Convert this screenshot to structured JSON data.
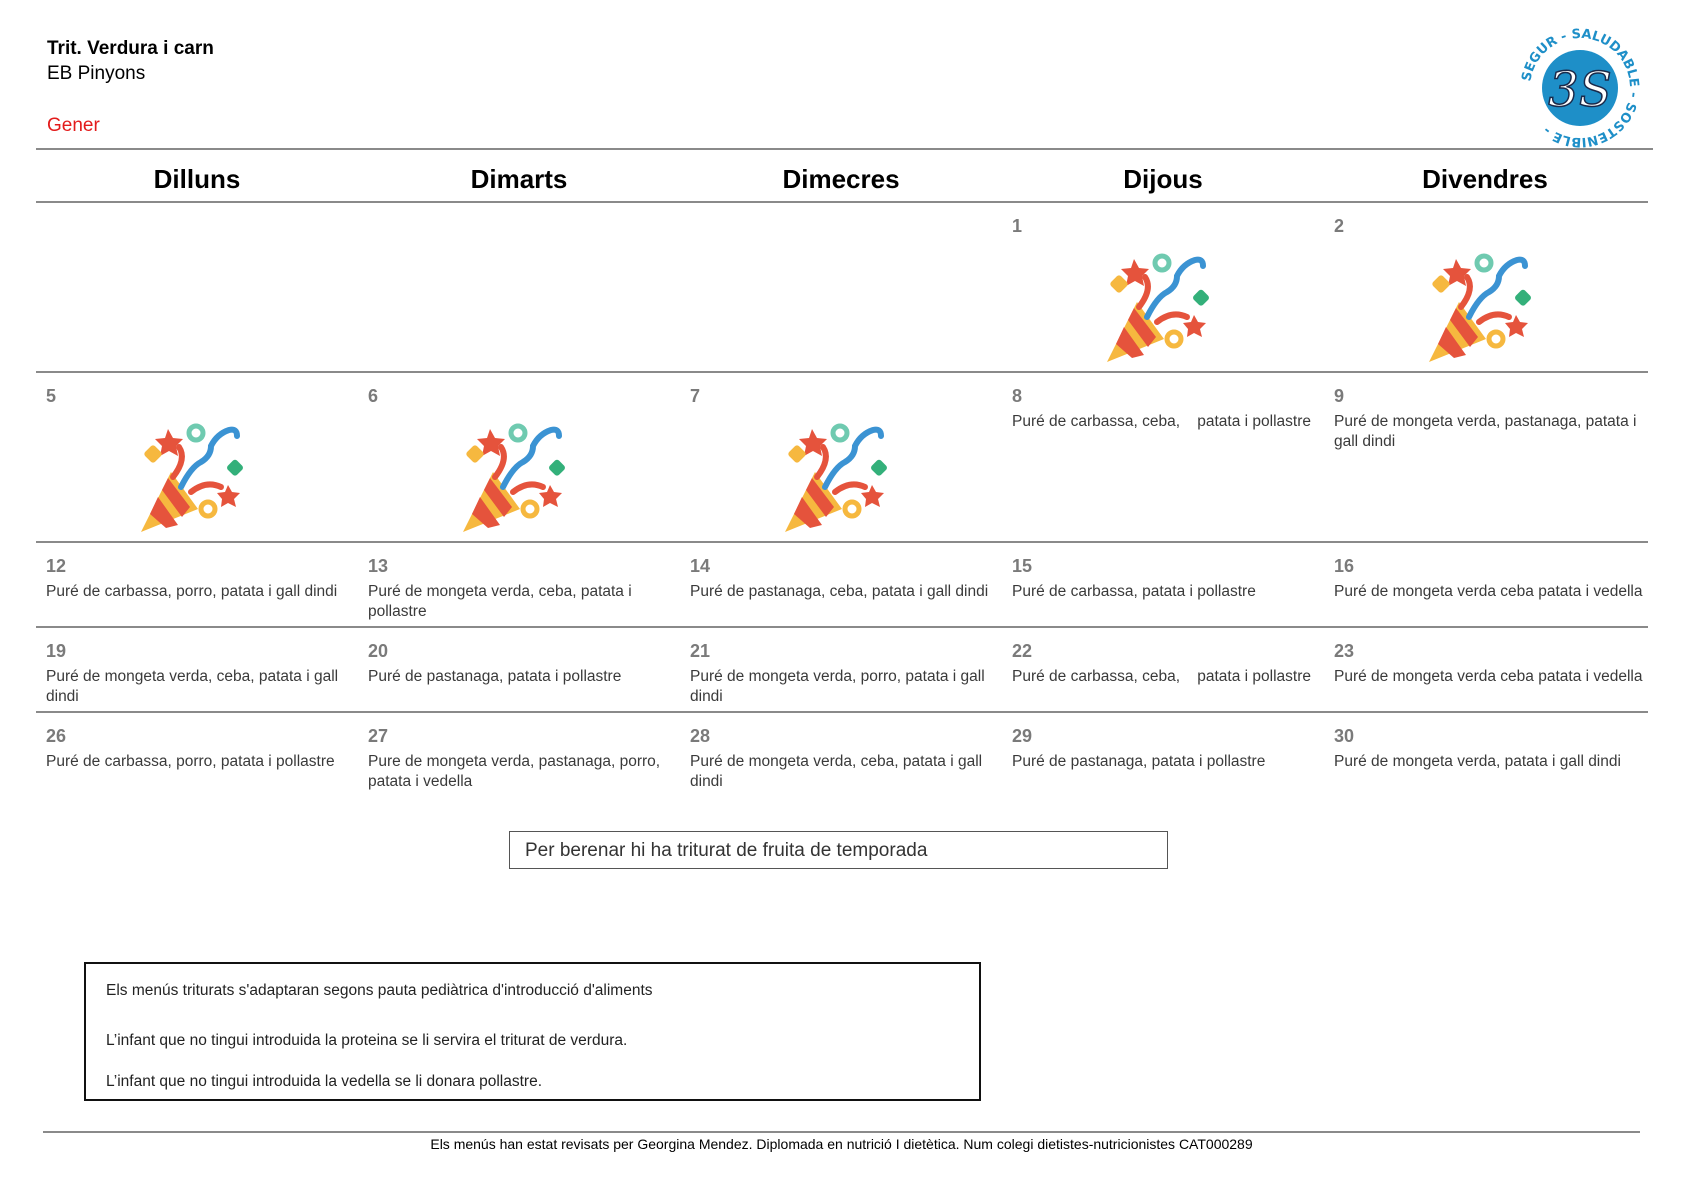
{
  "header": {
    "title": "Trit. Verdura i carn",
    "subtitle": "EB Pinyons",
    "month": "Gener",
    "logo": {
      "center": "3S",
      "ring_text": "SEGUR - SALUDABLE - SOSTENIBLE",
      "color": "#1e8fc8"
    }
  },
  "days": [
    "Dilluns",
    "Dimarts",
    "Dimecres",
    "Dijous",
    "Divendres"
  ],
  "weeks": [
    [
      null,
      null,
      null,
      {
        "day": "1",
        "icon": "party-popper-icon"
      },
      {
        "day": "2",
        "icon": "party-popper-icon"
      }
    ],
    [
      {
        "day": "5",
        "icon": "party-popper-icon"
      },
      {
        "day": "6",
        "icon": "party-popper-icon"
      },
      {
        "day": "7",
        "icon": "party-popper-icon"
      },
      {
        "day": "8",
        "menu": "Puré de carbassa, ceba,    patata i pollastre"
      },
      {
        "day": "9",
        "menu": "Puré de mongeta verda, pastanaga, patata i gall dindi"
      }
    ],
    [
      {
        "day": "12",
        "menu": "Puré de carbassa, porro, patata i gall dindi"
      },
      {
        "day": "13",
        "menu": "Puré de mongeta verda, ceba, patata i pollastre"
      },
      {
        "day": "14",
        "menu": "Puré de pastanaga, ceba, patata i gall dindi"
      },
      {
        "day": "15",
        "menu": "Puré de carbassa, patata i pollastre"
      },
      {
        "day": "16",
        "menu": "Puré de mongeta verda ceba patata i vedella"
      }
    ],
    [
      {
        "day": "19",
        "menu": "Puré de mongeta verda, ceba, patata i gall dindi"
      },
      {
        "day": "20",
        "menu": "Puré de pastanaga, patata i pollastre"
      },
      {
        "day": "21",
        "menu": "Puré de mongeta verda, porro, patata i gall dindi"
      },
      {
        "day": "22",
        "menu": "Puré de carbassa, ceba,    patata i pollastre"
      },
      {
        "day": "23",
        "menu": "Puré de mongeta verda ceba patata i vedella"
      }
    ],
    [
      {
        "day": "26",
        "menu": "Puré de carbassa, porro, patata i pollastre"
      },
      {
        "day": "27",
        "menu": "Pure de mongeta verda, pastanaga, porro, patata i vedella"
      },
      {
        "day": "28",
        "menu": "Puré de mongeta verda, ceba, patata i gall dindi"
      },
      {
        "day": "29",
        "menu": "Puré de pastanaga, patata i pollastre"
      },
      {
        "day": "30",
        "menu": "Puré de mongeta verda, patata i gall dindi"
      }
    ]
  ],
  "berenar": "Per berenar hi ha triturat de fruita de temporada",
  "notes": [
    "Els menús triturats s'adaptaran segons pauta pediàtrica d'introducció d'aliments",
    "L’infant que no tingui introduida la proteina se li servira el triturat de verdura.",
    "L’infant que no tingui introduida la vedella se li donara pollastre."
  ],
  "footer": "Els menús han estat revisats per Georgina Mendez. Diplomada en nutrició I dietètica. Num colegi dietistes-nutricionistes CAT000289"
}
